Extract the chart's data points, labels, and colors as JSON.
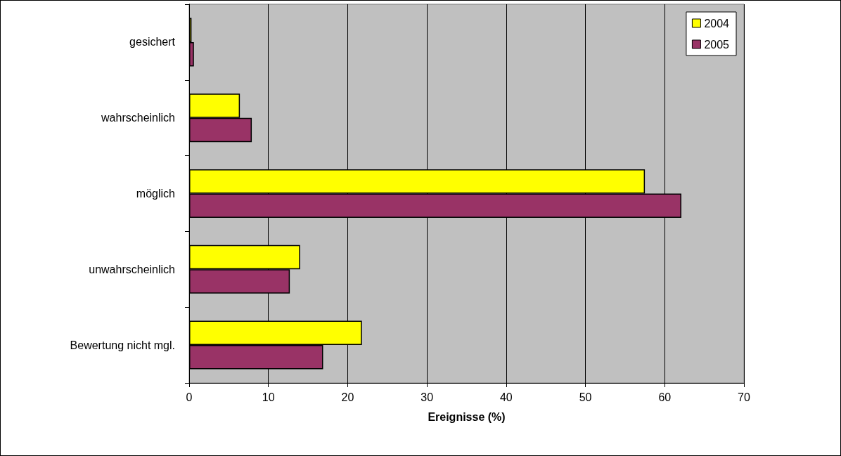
{
  "chart_data": {
    "type": "bar",
    "orientation": "horizontal",
    "xlabel": "Ereignisse (%)",
    "categories": [
      "gesichert",
      "wahrscheinlich",
      "möglich",
      "unwahrscheinlich",
      "Bewertung nicht mgl."
    ],
    "series": [
      {
        "name": "2004",
        "color": "#ffff00",
        "values": [
          0.3,
          6.4,
          57.5,
          14.0,
          21.8
        ]
      },
      {
        "name": "2005",
        "color": "#993366",
        "values": [
          0.6,
          7.9,
          62.1,
          12.7,
          16.9
        ]
      }
    ],
    "xlim": [
      0,
      70
    ],
    "xticks": [
      0,
      10,
      20,
      30,
      40,
      50,
      60,
      70
    ],
    "grid": "x",
    "legend": "top right"
  }
}
